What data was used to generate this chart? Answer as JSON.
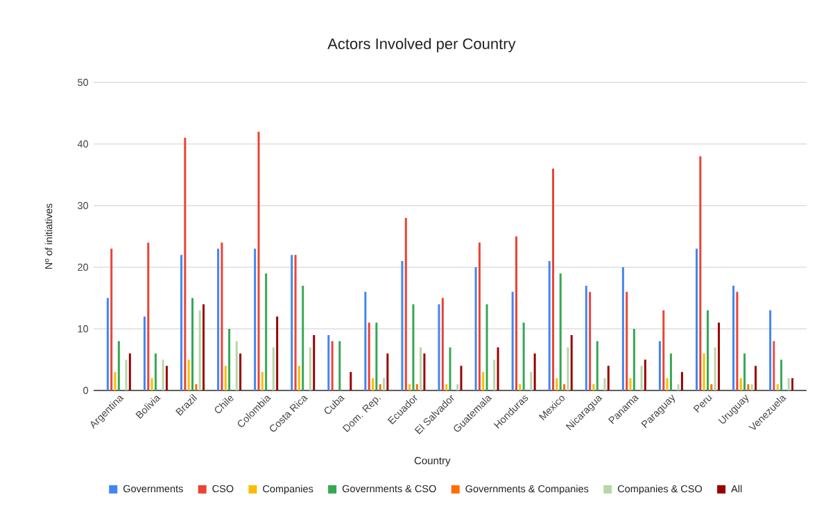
{
  "chart_data": {
    "type": "bar",
    "title": "Actors Involved per Country",
    "xlabel": "Country",
    "ylabel": "Nº of initiatives",
    "categories": [
      "Argentina",
      "Bolivia",
      "Brazil",
      "Chile",
      "Colombia",
      "Costa Rica",
      "Cuba",
      "Dom. Rep.",
      "Ecuador",
      "El Salvador",
      "Guatemala",
      "Honduras",
      "Mexico",
      "Nicaragua",
      "Panama",
      "Paraguay",
      "Peru",
      "Uruguay",
      "Venezuela"
    ],
    "series": [
      {
        "name": "Governments",
        "color": "#4285f4",
        "values": [
          15,
          12,
          22,
          23,
          23,
          22,
          9,
          16,
          21,
          14,
          20,
          16,
          21,
          17,
          20,
          8,
          23,
          17,
          13
        ]
      },
      {
        "name": "CSO",
        "color": "#ea4335",
        "values": [
          23,
          24,
          41,
          24,
          42,
          22,
          8,
          11,
          28,
          15,
          24,
          25,
          36,
          16,
          16,
          13,
          38,
          16,
          8
        ]
      },
      {
        "name": "Companies",
        "color": "#fbbc04",
        "values": [
          3,
          2,
          5,
          4,
          3,
          4,
          0,
          2,
          1,
          1,
          3,
          1,
          2,
          1,
          2,
          2,
          6,
          2,
          1
        ]
      },
      {
        "name": "Governments & CSO",
        "color": "#34a853",
        "values": [
          8,
          6,
          15,
          10,
          19,
          17,
          8,
          11,
          14,
          7,
          14,
          11,
          19,
          8,
          10,
          6,
          13,
          6,
          5
        ]
      },
      {
        "name": "Governments & Companies",
        "color": "#ff6d01",
        "values": [
          0,
          0,
          1,
          0,
          0,
          0,
          0,
          1,
          1,
          0,
          0,
          0,
          1,
          0,
          0,
          0,
          1,
          1,
          0
        ]
      },
      {
        "name": "Companies & CSO",
        "color": "#b6d7a8",
        "values": [
          5,
          5,
          13,
          8,
          7,
          7,
          0,
          2,
          7,
          1,
          5,
          3,
          7,
          2,
          4,
          1,
          7,
          1,
          2
        ]
      },
      {
        "name": "All",
        "color": "#990000",
        "values": [
          6,
          4,
          14,
          6,
          12,
          9,
          3,
          6,
          6,
          4,
          7,
          6,
          9,
          4,
          5,
          3,
          11,
          4,
          2
        ]
      }
    ],
    "ylim": [
      0,
      50
    ],
    "yticks": [
      0,
      10,
      20,
      30,
      40,
      50
    ],
    "grid": "y",
    "legend": "bottom"
  }
}
